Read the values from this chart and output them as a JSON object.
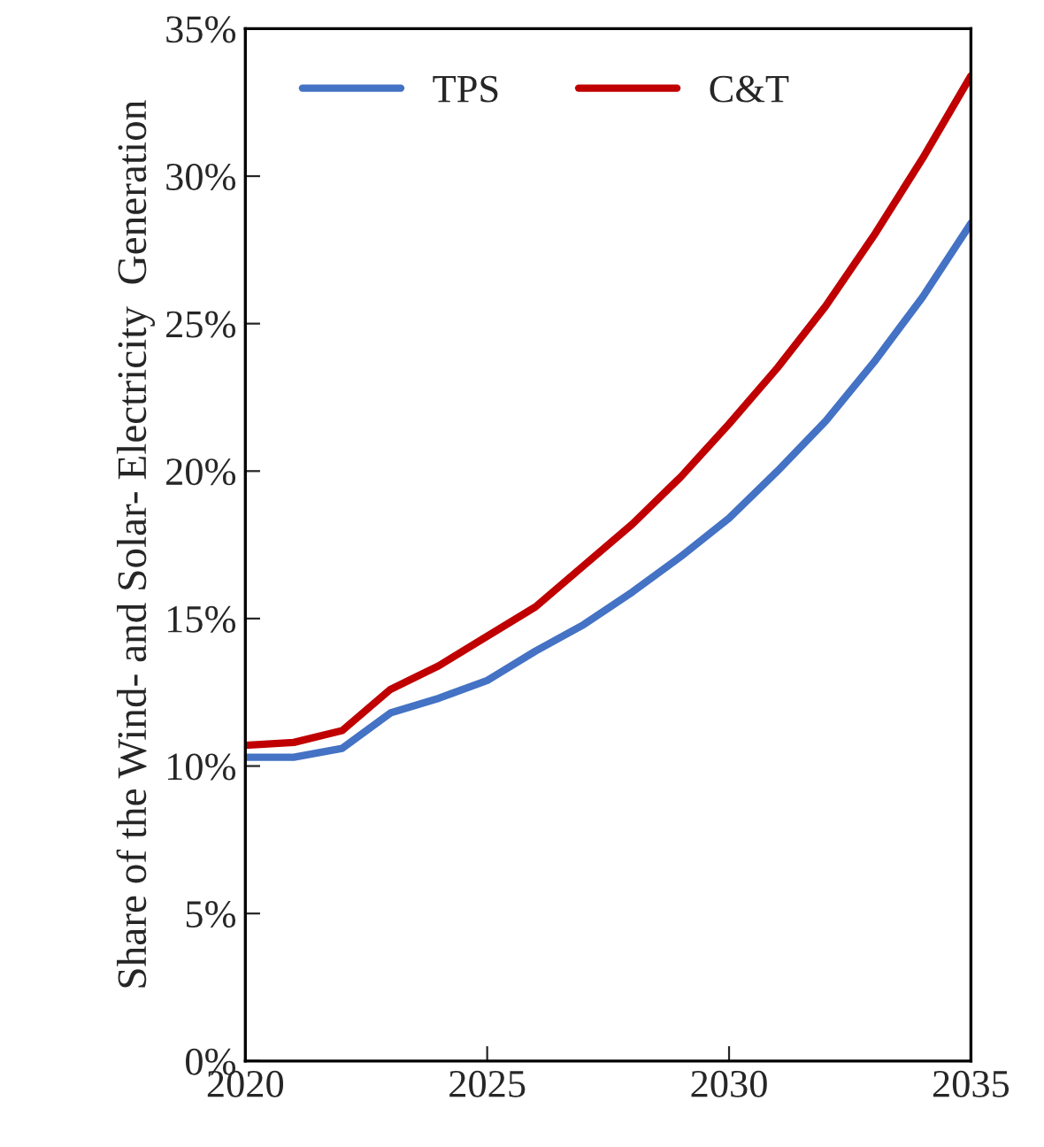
{
  "chart_data": {
    "type": "line",
    "ylabel": "Share of the Wind- and Solar- Electricity  Generation",
    "x": [
      2020,
      2021,
      2022,
      2023,
      2024,
      2025,
      2026,
      2027,
      2028,
      2029,
      2030,
      2031,
      2032,
      2033,
      2034,
      2035
    ],
    "series": [
      {
        "name": "TPS",
        "color": "#4472c4",
        "values": [
          10.3,
          10.3,
          10.6,
          11.8,
          12.3,
          12.9,
          13.9,
          14.8,
          15.9,
          17.1,
          18.4,
          20.0,
          21.7,
          23.7,
          25.9,
          28.4
        ]
      },
      {
        "name": "C&T",
        "color": "#c00000",
        "values": [
          10.7,
          10.8,
          11.2,
          12.6,
          13.4,
          14.4,
          15.4,
          16.8,
          18.2,
          19.8,
          21.6,
          23.5,
          25.6,
          28.0,
          30.6,
          33.4
        ]
      }
    ],
    "xlim": [
      2020,
      2035
    ],
    "xticks": [
      2020,
      2025,
      2030,
      2035
    ],
    "ylim": [
      0,
      35
    ],
    "yticks": [
      {
        "value": 0,
        "label": "0%"
      },
      {
        "value": 5,
        "label": "5%"
      },
      {
        "value": 10,
        "label": "10%"
      },
      {
        "value": 15,
        "label": "15%"
      },
      {
        "value": 20,
        "label": "20%"
      },
      {
        "value": 25,
        "label": "25%"
      },
      {
        "value": 30,
        "label": "30%"
      },
      {
        "value": 35,
        "label": "35%"
      }
    ],
    "grid": false,
    "legend": "top left",
    "line_style": "solid",
    "marker": "none"
  }
}
